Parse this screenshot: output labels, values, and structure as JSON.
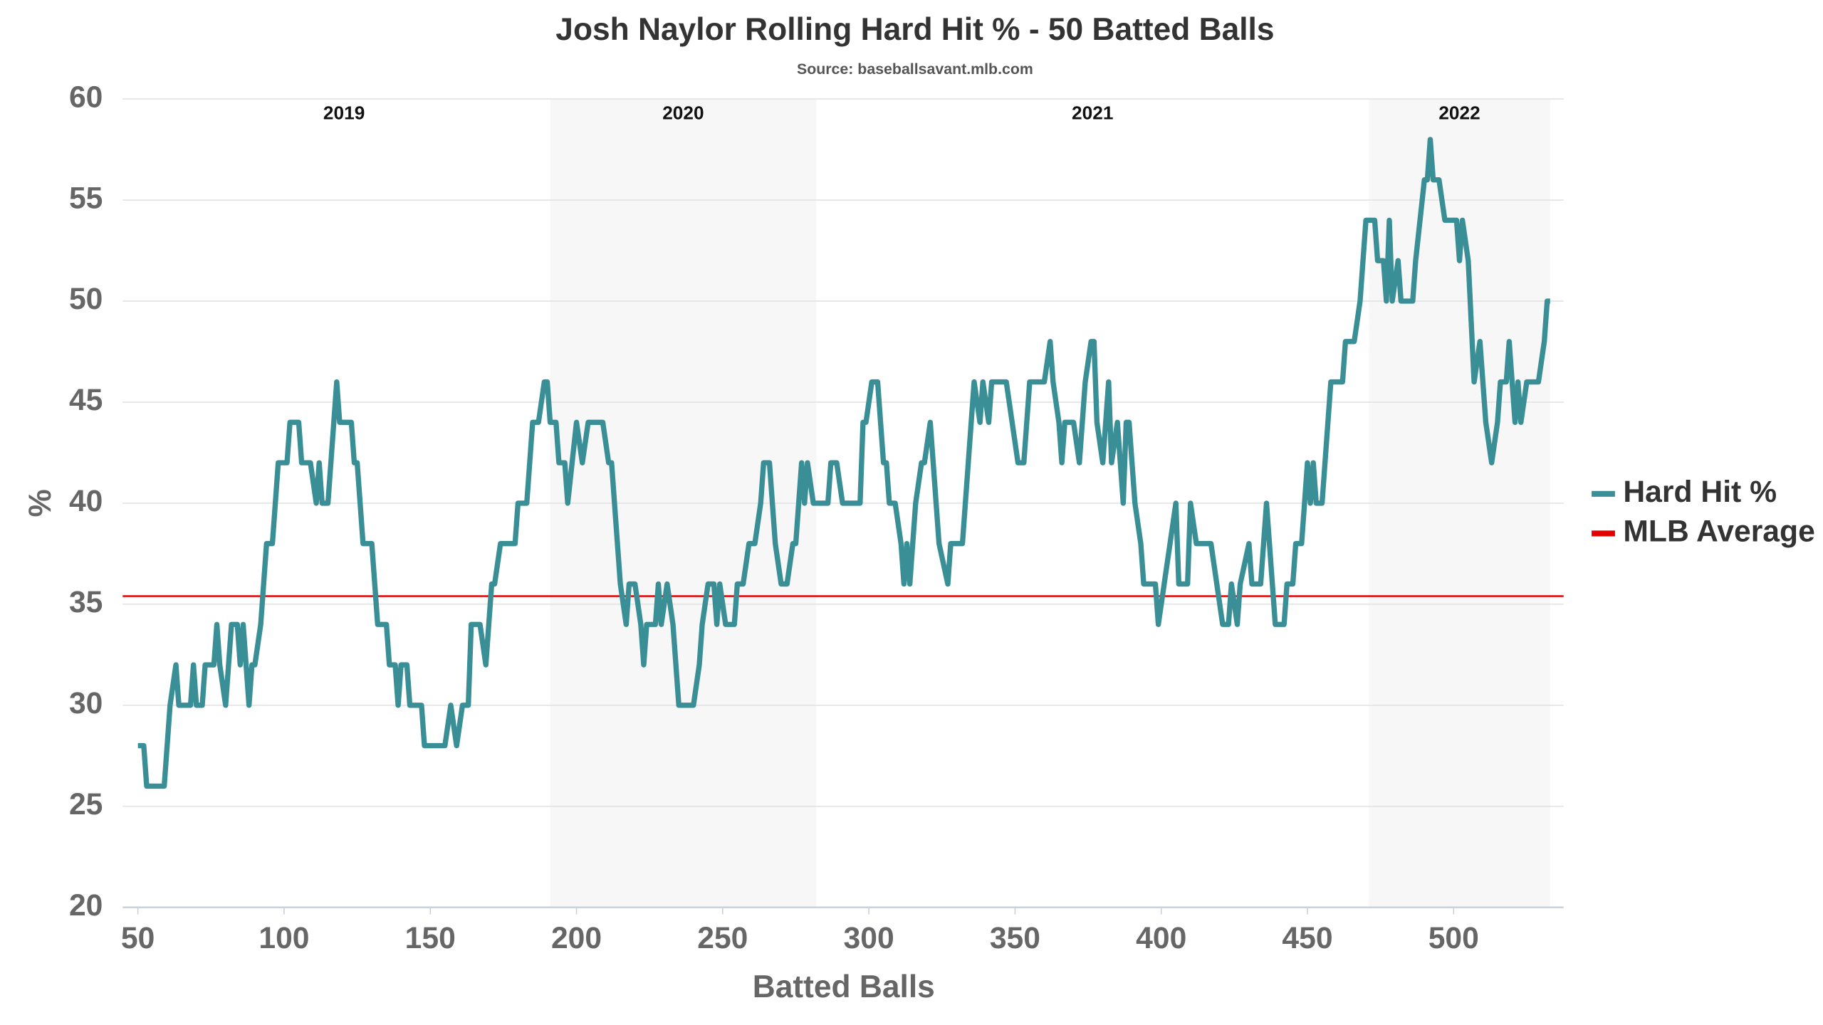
{
  "chart_data": {
    "type": "line",
    "title": "Josh Naylor Rolling Hard Hit % - 50 Batted Balls",
    "subtitle": "Source: baseballsavant.mlb.com",
    "x_label": "Batted Balls",
    "y_label": "%",
    "xlim": [
      44.8,
      537.6
    ],
    "ylim": [
      20,
      60
    ],
    "xticks": [
      50,
      100,
      150,
      200,
      250,
      300,
      350,
      400,
      450,
      500
    ],
    "yticks": [
      20,
      25,
      30,
      35,
      40,
      45,
      50,
      55,
      60
    ],
    "grid": true,
    "legend": "right",
    "seasons": [
      {
        "label": "2019",
        "start": 50,
        "end": 191,
        "shaded": false
      },
      {
        "label": "2020",
        "start": 191,
        "end": 282,
        "shaded": true
      },
      {
        "label": "2021",
        "start": 282,
        "end": 471,
        "shaded": false
      },
      {
        "label": "2022",
        "start": 471,
        "end": 533,
        "shaded": true
      }
    ],
    "reference_line": {
      "name": "MLB Average",
      "value": 35.4,
      "color": "#e00000"
    },
    "x": [
      50,
      52,
      53,
      59,
      61,
      63,
      64,
      68,
      69,
      70,
      72,
      73,
      76,
      77,
      78,
      80,
      82,
      84,
      85,
      86,
      88,
      89,
      90,
      92,
      94,
      96,
      98,
      101,
      102,
      105,
      106,
      109,
      111,
      112,
      113,
      115,
      118,
      119,
      123,
      124,
      125,
      127,
      130,
      132,
      135,
      136,
      138,
      139,
      140,
      142,
      143,
      147,
      148,
      155,
      157,
      159,
      161,
      163,
      164,
      167,
      169,
      171,
      172,
      174,
      179,
      180,
      183,
      185,
      187,
      189,
      190,
      191,
      193,
      194,
      196,
      197,
      200,
      202,
      204,
      209,
      211,
      212,
      215,
      217,
      218,
      220,
      222,
      223,
      224,
      227,
      228,
      229,
      231,
      233,
      235,
      240,
      242,
      243,
      245,
      247,
      248,
      249,
      251,
      254,
      255,
      257,
      259,
      261,
      263,
      264,
      266,
      268,
      270,
      272,
      274,
      275,
      277,
      278,
      279,
      281,
      286,
      287,
      289,
      291,
      297,
      298,
      299,
      301,
      303,
      305,
      306,
      307,
      309,
      311,
      312,
      313,
      314,
      316,
      318,
      319,
      321,
      322,
      324,
      327,
      328,
      332,
      334,
      336,
      338,
      339,
      341,
      342,
      347,
      349,
      351,
      353,
      355,
      360,
      362,
      363,
      365,
      366,
      367,
      370,
      372,
      374,
      376,
      377,
      378,
      380,
      382,
      383,
      385,
      387,
      388,
      389,
      391,
      393,
      394,
      398,
      399,
      401,
      403,
      405,
      406,
      409,
      410,
      412,
      417,
      419,
      421,
      423,
      424,
      426,
      427,
      430,
      431,
      434,
      436,
      438,
      439,
      442,
      443,
      445,
      446,
      448,
      450,
      451,
      452,
      453,
      455,
      457,
      458,
      462,
      463,
      466,
      468,
      470,
      473,
      474,
      476,
      477,
      478,
      479,
      481,
      482,
      486,
      487,
      490,
      491,
      492,
      493,
      495,
      497,
      501,
      502,
      503,
      505,
      507,
      509,
      511,
      513,
      515,
      516,
      518,
      519,
      521,
      522,
      523,
      525,
      529,
      531,
      532,
      533
    ],
    "series": [
      {
        "name": "Hard Hit %",
        "color": "#3a8f96",
        "values": [
          28,
          28,
          26,
          26,
          30,
          32,
          30,
          30,
          32,
          30,
          30,
          32,
          32,
          34,
          32,
          30,
          34,
          34,
          32,
          34,
          30,
          32,
          32,
          34,
          38,
          38,
          42,
          42,
          44,
          44,
          42,
          42,
          40,
          42,
          40,
          40,
          46,
          44,
          44,
          42,
          42,
          38,
          38,
          34,
          34,
          32,
          32,
          30,
          32,
          32,
          30,
          30,
          28,
          28,
          30,
          28,
          30,
          30,
          34,
          34,
          32,
          36,
          36,
          38,
          38,
          40,
          40,
          44,
          44,
          46,
          46,
          44,
          44,
          42,
          42,
          40,
          44,
          42,
          44,
          44,
          42,
          42,
          36,
          34,
          36,
          36,
          34,
          32,
          34,
          34,
          36,
          34,
          36,
          34,
          30,
          30,
          32,
          34,
          36,
          36,
          34,
          36,
          34,
          34,
          36,
          36,
          38,
          38,
          40,
          42,
          42,
          38,
          36,
          36,
          38,
          38,
          42,
          40,
          42,
          40,
          40,
          42,
          42,
          40,
          40,
          44,
          44,
          46,
          46,
          42,
          42,
          40,
          40,
          38,
          36,
          38,
          36,
          40,
          42,
          42,
          44,
          42,
          38,
          36,
          38,
          38,
          42,
          46,
          44,
          46,
          44,
          46,
          46,
          44,
          42,
          42,
          46,
          46,
          48,
          46,
          44,
          42,
          44,
          44,
          42,
          46,
          48,
          48,
          44,
          42,
          46,
          42,
          44,
          40,
          44,
          44,
          40,
          38,
          36,
          36,
          34,
          36,
          38,
          40,
          36,
          36,
          40,
          38,
          38,
          36,
          34,
          34,
          36,
          34,
          36,
          38,
          36,
          36,
          40,
          36,
          34,
          34,
          36,
          36,
          38,
          38,
          42,
          40,
          42,
          40,
          40,
          44,
          46,
          46,
          48,
          48,
          50,
          54,
          54,
          52,
          52,
          50,
          54,
          50,
          52,
          50,
          50,
          52,
          56,
          56,
          58,
          56,
          56,
          54,
          54,
          52,
          54,
          52,
          46,
          48,
          44,
          42,
          44,
          46,
          46,
          48,
          44,
          46,
          44,
          46,
          46,
          48,
          50,
          50
        ]
      }
    ]
  }
}
